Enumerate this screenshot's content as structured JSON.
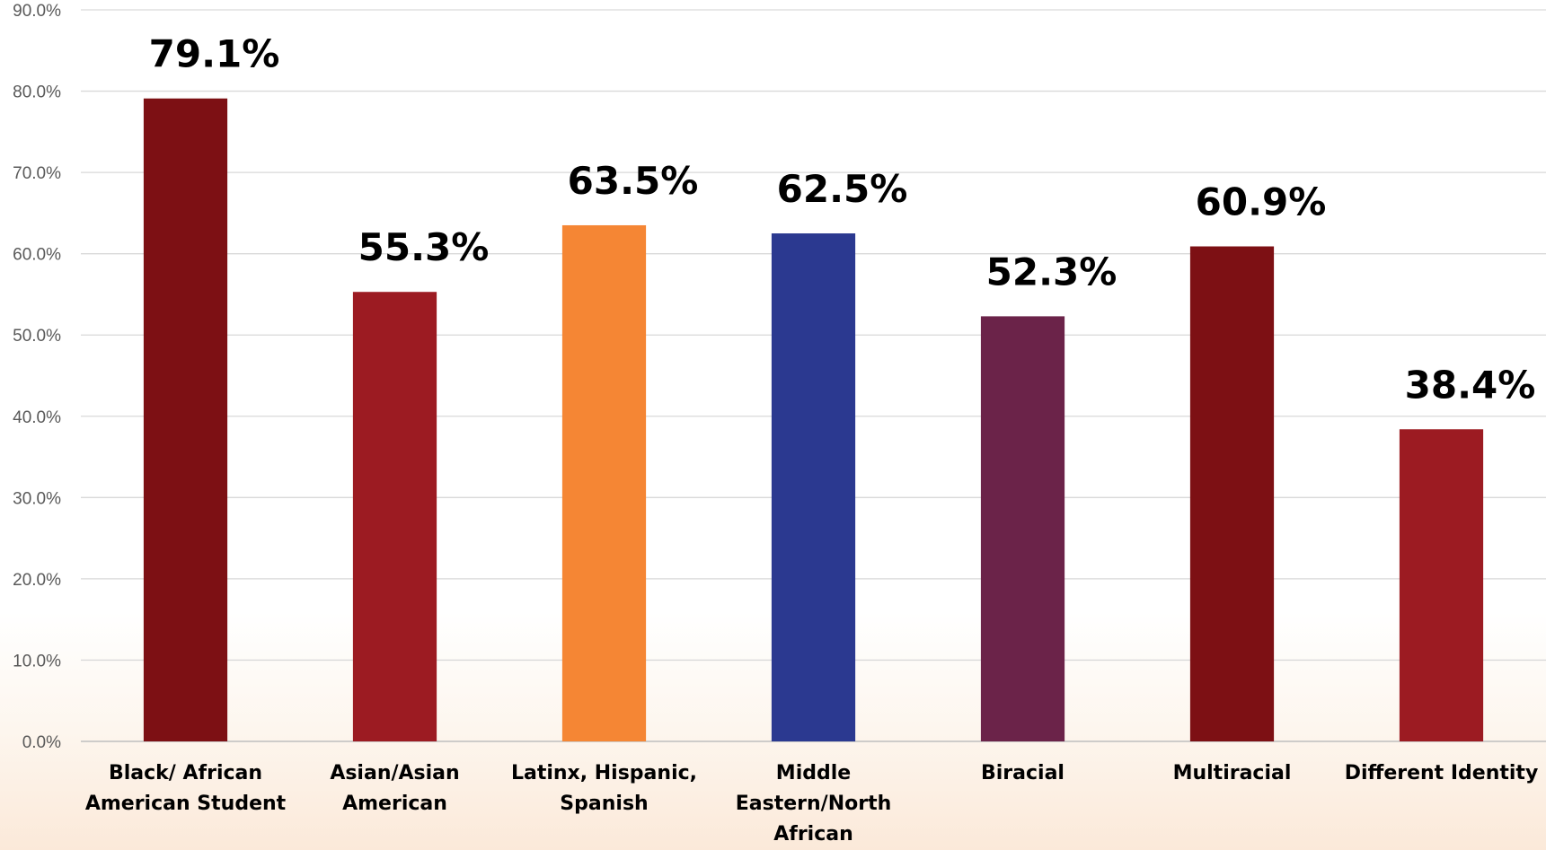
{
  "chart_data": {
    "type": "bar",
    "categories": [
      [
        "Black/ African",
        "American Student"
      ],
      [
        "Asian/Asian",
        "American"
      ],
      [
        "Latinx, Hispanic,",
        "Spanish"
      ],
      [
        "Middle",
        "Eastern/North",
        "African"
      ],
      [
        "Biracial"
      ],
      [
        "Multiracial"
      ],
      [
        "Different Identity"
      ]
    ],
    "values": [
      79.1,
      55.3,
      63.5,
      62.5,
      52.3,
      60.9,
      38.4
    ],
    "data_labels": [
      "79.1%",
      "55.3%",
      "63.5%",
      "62.5%",
      "52.3%",
      "60.9%",
      "38.4%"
    ],
    "colors": [
      "#7d1014",
      "#9c1b22",
      "#f58634",
      "#2b3990",
      "#6b2349",
      "#7d1014",
      "#9c1b22"
    ],
    "ylim": [
      0,
      90
    ],
    "yticks": [
      "0.0%",
      "10.0%",
      "20.0%",
      "30.0%",
      "40.0%",
      "50.0%",
      "60.0%",
      "70.0%",
      "80.0%",
      "90.0%"
    ],
    "grid": true,
    "legend": false,
    "title": "",
    "xlabel": "",
    "ylabel": ""
  }
}
